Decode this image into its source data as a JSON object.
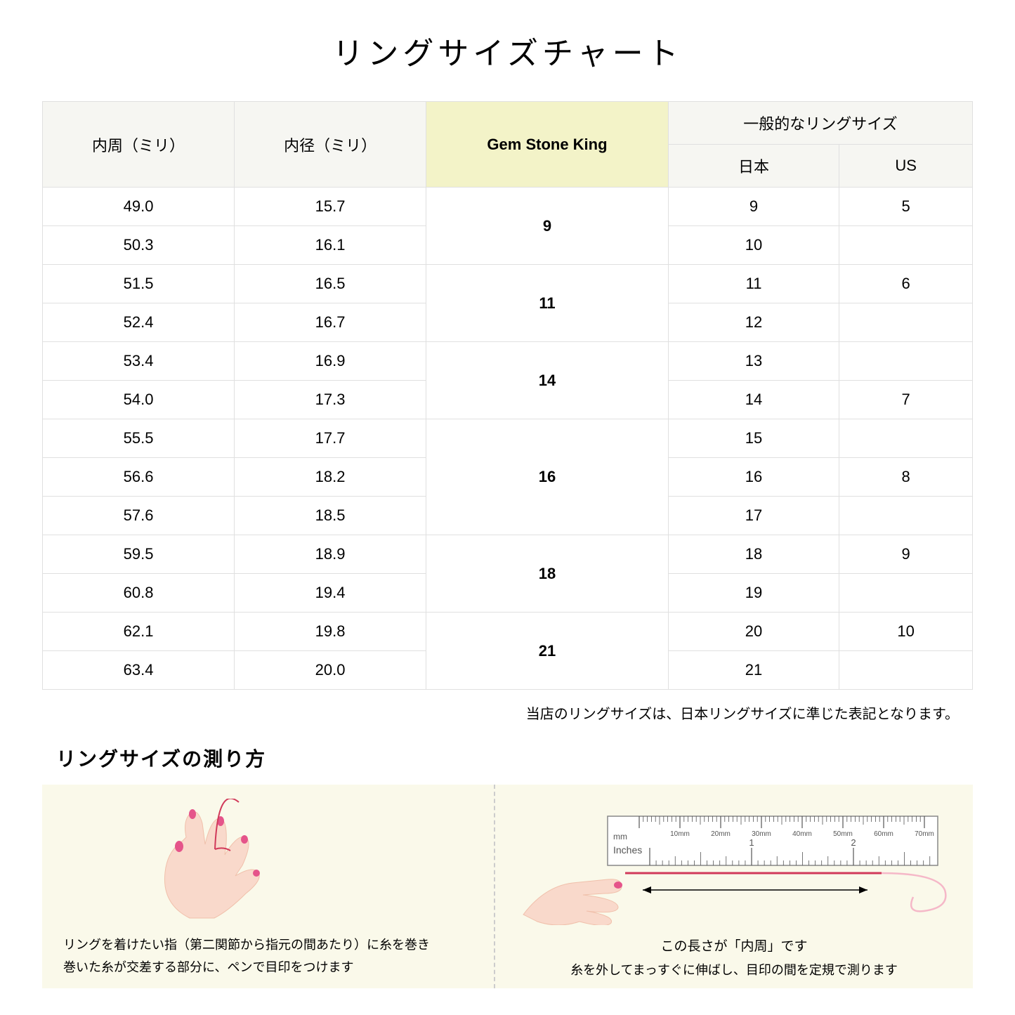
{
  "title": "リングサイズチャート",
  "headers": {
    "circumference": "内周（ミリ）",
    "diameter": "内径（ミリ）",
    "gsk": "Gem Stone King",
    "common": "一般的なリングサイズ",
    "jp": "日本",
    "us": "US"
  },
  "rows": [
    {
      "c": "49.0",
      "d": "15.7",
      "jp": "9",
      "us": "5"
    },
    {
      "c": "50.3",
      "d": "16.1",
      "jp": "10",
      "us": ""
    },
    {
      "c": "51.5",
      "d": "16.5",
      "jp": "11",
      "us": "6"
    },
    {
      "c": "52.4",
      "d": "16.7",
      "jp": "12",
      "us": ""
    },
    {
      "c": "53.4",
      "d": "16.9",
      "jp": "13",
      "us": ""
    },
    {
      "c": "54.0",
      "d": "17.3",
      "jp": "14",
      "us": "7"
    },
    {
      "c": "55.5",
      "d": "17.7",
      "jp": "15",
      "us": ""
    },
    {
      "c": "56.6",
      "d": "18.2",
      "jp": "16",
      "us": "8"
    },
    {
      "c": "57.6",
      "d": "18.5",
      "jp": "17",
      "us": ""
    },
    {
      "c": "59.5",
      "d": "18.9",
      "jp": "18",
      "us": "9"
    },
    {
      "c": "60.8",
      "d": "19.4",
      "jp": "19",
      "us": ""
    },
    {
      "c": "62.1",
      "d": "19.8",
      "jp": "20",
      "us": "10"
    },
    {
      "c": "63.4",
      "d": "20.0",
      "jp": "21",
      "us": ""
    }
  ],
  "gsk_groups": [
    {
      "size": "9",
      "span": 2
    },
    {
      "size": "11",
      "span": 2
    },
    {
      "size": "14",
      "span": 2
    },
    {
      "size": "16",
      "span": 3
    },
    {
      "size": "18",
      "span": 2
    },
    {
      "size": "21",
      "span": 2
    }
  ],
  "note": "当店のリングサイズは、日本リングサイズに準じた表記となります。",
  "howto_title": "リングサイズの測り方",
  "step1_caption": "リングを着けたい指（第二関節から指元の間あたり）に糸を巻き\n巻いた糸が交差する部分に、ペンで目印をつけます",
  "step2_measure_label": "この長さが「内周」です",
  "step2_caption": "糸を外してまっすぐに伸ばし、目印の間を定規で測ります",
  "ruler": {
    "mm_label": "mm",
    "inches_label": "Inches",
    "mm_ticks": [
      "10mm",
      "20mm",
      "30mm",
      "40mm",
      "50mm",
      "60mm",
      "70mm"
    ],
    "inch_major": [
      "1",
      "2"
    ]
  },
  "colors": {
    "header_bg": "#f6f6f2",
    "gsk_bg": "#f3f3c8",
    "border": "#e0e0e0",
    "howto_bg": "#faf9ea",
    "skin": "#f9d9cb",
    "skin_dark": "#f0c0ab",
    "nail": "#e5548a",
    "thread": "#d13a5a",
    "ruler_border": "#888"
  }
}
